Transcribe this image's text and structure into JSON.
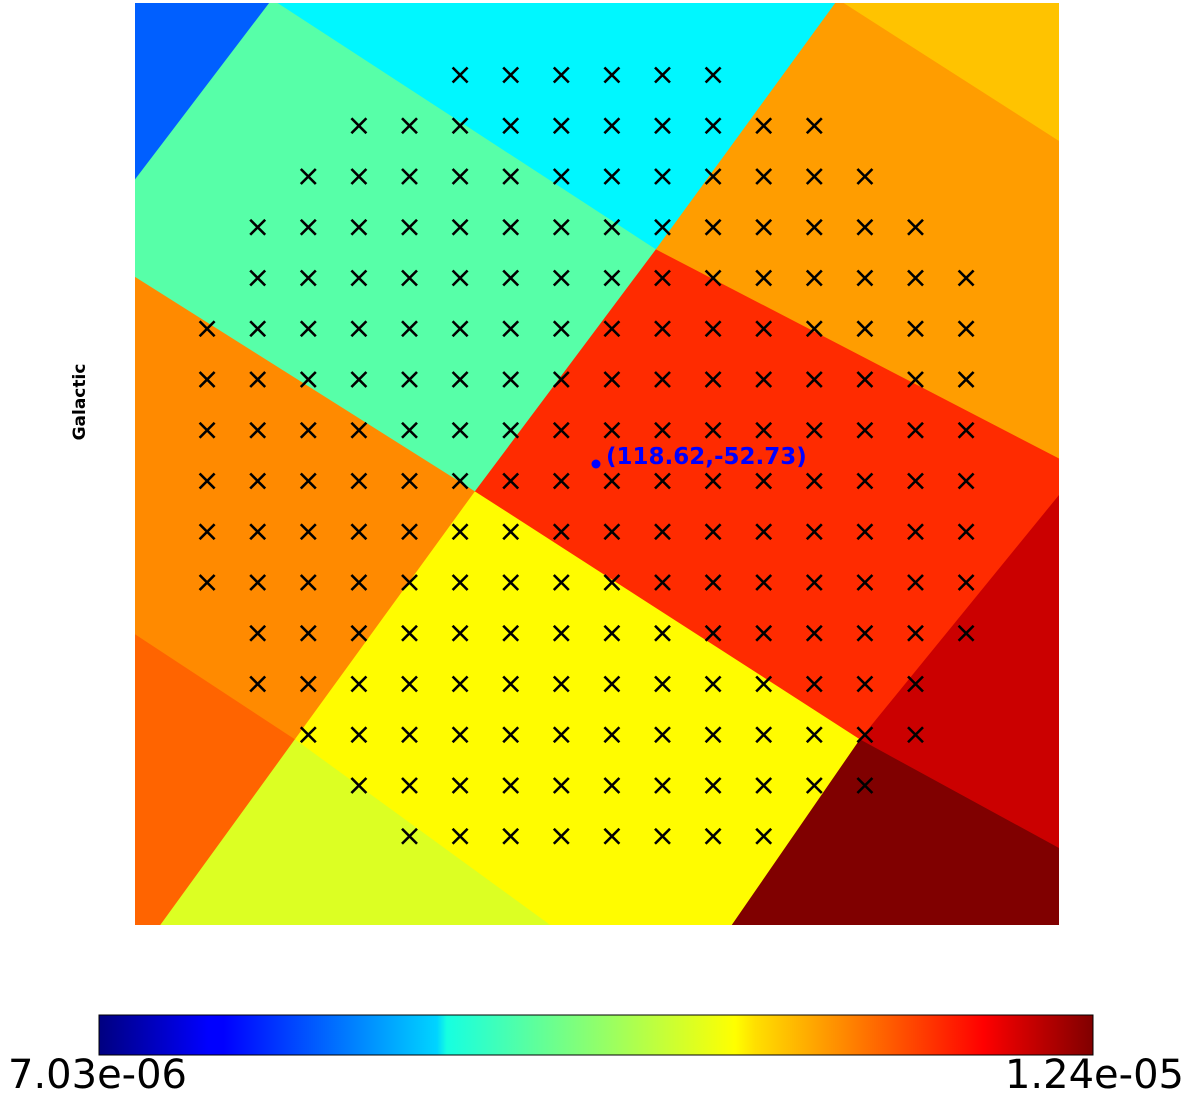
{
  "chart_data": {
    "type": "heatmap",
    "projection": "gnomonic",
    "coordinate_system": "Galactic",
    "colormap": "jet",
    "colorbar": {
      "min_label": "7.03e-06",
      "max_label": "1.24e-05",
      "vmin": 7.03e-06,
      "vmax": 1.24e-05,
      "placement": "bottom"
    },
    "pixel_values": [
      {
        "name": "upper-left-corner-pixel",
        "value": 8.2e-06
      },
      {
        "name": "top-center-pixel",
        "value": 9e-06
      },
      {
        "name": "upper-right-corner-pixel",
        "value": 1.07e-05
      },
      {
        "name": "upper-left-pixel",
        "value": 9.5e-06
      },
      {
        "name": "upper-right-pixel",
        "value": 1.09e-05
      },
      {
        "name": "left-pixel",
        "value": 1.1e-05
      },
      {
        "name": "central-pixel",
        "value": 1.15e-05
      },
      {
        "name": "lower-center-pixel",
        "value": 1.04e-05
      },
      {
        "name": "right-pixel",
        "value": 1.2e-05
      },
      {
        "name": "lower-left-corner-pixel",
        "value": 1.12e-05
      },
      {
        "name": "bottom-pixel",
        "value": 1.02e-05
      },
      {
        "name": "lower-right-corner-pixel",
        "value": 1.24e-05
      }
    ],
    "marked_point": {
      "lon": 118.62,
      "lat": -52.73,
      "label": "(118.62,-52.73)",
      "color": "#0000ff"
    },
    "marker": {
      "symbol": "x",
      "color": "#000000"
    },
    "grid_rows": [
      {
        "cols": [
          6,
          11
        ]
      },
      {
        "cols": [
          4,
          13
        ]
      },
      {
        "cols": [
          3,
          14
        ]
      },
      {
        "cols": [
          2,
          15
        ]
      },
      {
        "cols": [
          2,
          16
        ]
      },
      {
        "cols": [
          1,
          16
        ]
      },
      {
        "cols": [
          1,
          16
        ]
      },
      {
        "cols": [
          1,
          16
        ]
      },
      {
        "cols": [
          1,
          16
        ]
      },
      {
        "cols": [
          1,
          16
        ]
      },
      {
        "cols": [
          1,
          16
        ]
      },
      {
        "cols": [
          2,
          16
        ]
      },
      {
        "cols": [
          2,
          15
        ]
      },
      {
        "cols": [
          3,
          15
        ]
      },
      {
        "cols": [
          4,
          14
        ]
      },
      {
        "cols": [
          5,
          12
        ]
      }
    ]
  }
}
